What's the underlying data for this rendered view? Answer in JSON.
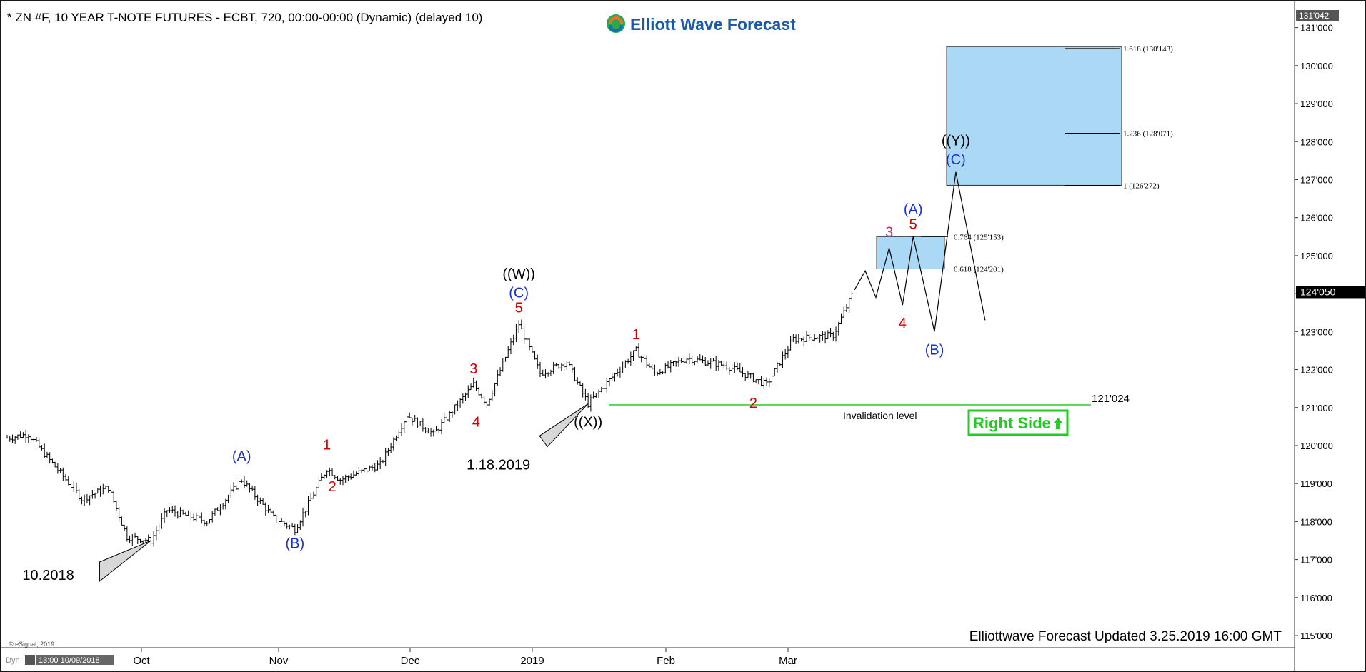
{
  "header": {
    "title": "* ZN #F, 10 YEAR T-NOTE FUTURES - ECBT, 720, 00:00-00:00 (Dynamic) (delayed 10)",
    "brand": "Elliott Wave Forecast",
    "footer": "Elliottwave Forecast Updated 3.25.2019 16:00 GMT",
    "copyright": "© eSignal, 2019",
    "corner_tag": "Dyn",
    "time_readout": "13:00 10/09/2018"
  },
  "colors": {
    "background": "#ffffff",
    "frame": "#1a1a1a",
    "wave_red": "#d40000",
    "wave_blue": "#1a2fd4",
    "target_box": "#aad8f5",
    "invalidation_line": "#2ecc2e",
    "right_side": "#22cc22"
  },
  "chart_data": {
    "type": "ohlc",
    "ylim": [
      114.7,
      131.5
    ],
    "y_ticks": [
      "115'000",
      "116'000",
      "117'000",
      "118'000",
      "119'000",
      "120'000",
      "121'000",
      "122'000",
      "123'000",
      "124'000",
      "125'000",
      "126'000",
      "127'000",
      "128'000",
      "129'000",
      "130'000",
      "131'000"
    ],
    "price_top_label": "131'042",
    "last_price_label": "124'050",
    "last_price": 124.05,
    "x_labels": [
      "Oct",
      "Nov",
      "Dec",
      "2019",
      "Feb",
      "Mar"
    ],
    "price_path": [
      {
        "bar": 0,
        "price": 120.2
      },
      {
        "bar": 8,
        "price": 120.3
      },
      {
        "bar": 15,
        "price": 119.7
      },
      {
        "bar": 28,
        "price": 118.6
      },
      {
        "bar": 38,
        "price": 118.9
      },
      {
        "bar": 45,
        "price": 117.6
      },
      {
        "bar": 54,
        "price": 117.5
      },
      {
        "bar": 60,
        "price": 118.3
      },
      {
        "bar": 75,
        "price": 118.0
      },
      {
        "bar": 88,
        "price": 119.1
      },
      {
        "bar": 100,
        "price": 118.1
      },
      {
        "bar": 108,
        "price": 117.8
      },
      {
        "bar": 120,
        "price": 119.4
      },
      {
        "bar": 125,
        "price": 119.1
      },
      {
        "bar": 140,
        "price": 119.5
      },
      {
        "bar": 150,
        "price": 120.8
      },
      {
        "bar": 160,
        "price": 120.3
      },
      {
        "bar": 175,
        "price": 121.6
      },
      {
        "bar": 180,
        "price": 121.1
      },
      {
        "bar": 192,
        "price": 123.2
      },
      {
        "bar": 200,
        "price": 121.9
      },
      {
        "bar": 210,
        "price": 122.2
      },
      {
        "bar": 218,
        "price": 121.1
      },
      {
        "bar": 236,
        "price": 122.5
      },
      {
        "bar": 243,
        "price": 121.9
      },
      {
        "bar": 255,
        "price": 122.3
      },
      {
        "bar": 270,
        "price": 122.1
      },
      {
        "bar": 285,
        "price": 121.6
      },
      {
        "bar": 295,
        "price": 122.8
      },
      {
        "bar": 310,
        "price": 122.9
      },
      {
        "bar": 318,
        "price": 124.1
      }
    ],
    "projection": [
      {
        "bar": 318,
        "price": 124.1
      },
      {
        "bar": 322,
        "price": 124.6
      },
      {
        "bar": 326,
        "price": 123.9
      },
      {
        "bar": 331,
        "price": 125.2
      },
      {
        "bar": 336,
        "price": 123.7
      },
      {
        "bar": 340,
        "price": 125.5
      },
      {
        "bar": 348,
        "price": 123.0
      },
      {
        "bar": 356,
        "price": 127.2
      },
      {
        "bar": 367,
        "price": 123.3
      }
    ],
    "target_zones": [
      {
        "top": 125.5,
        "bottom": 124.65
      },
      {
        "top": 130.5,
        "bottom": 126.85
      }
    ],
    "fib_levels": [
      {
        "label": "1.618 (130'143)",
        "price": 130.45
      },
      {
        "label": "1.236 (128'071)",
        "price": 128.22
      },
      {
        "label": "1 (126'272)",
        "price": 126.85
      },
      {
        "label": "0.764 (125'153)",
        "price": 125.5
      },
      {
        "label": "0.618 (124'201)",
        "price": 124.65
      }
    ],
    "invalidation": {
      "price": 121.07,
      "label": "121'024",
      "caption": "Invalidation level"
    },
    "wave_labels": [
      {
        "text": "(A)",
        "color": "blue",
        "bar": 88,
        "price": 119.6
      },
      {
        "text": "(B)",
        "color": "blue",
        "bar": 108,
        "price": 117.3
      },
      {
        "text": "1",
        "color": "red",
        "bar": 120,
        "price": 119.9
      },
      {
        "text": "2",
        "color": "red",
        "bar": 122,
        "price": 118.8
      },
      {
        "text": "3",
        "color": "red",
        "bar": 175,
        "price": 121.9
      },
      {
        "text": "4",
        "color": "red",
        "bar": 176,
        "price": 120.5
      },
      {
        "text": "5",
        "color": "red",
        "bar": 192,
        "price": 123.5
      },
      {
        "text": "(C)",
        "color": "blue",
        "bar": 192,
        "price": 123.9
      },
      {
        "text": "((W))",
        "color": "black",
        "bar": 192,
        "price": 124.4
      },
      {
        "text": "((X))",
        "color": "black",
        "bar": 218,
        "price": 120.5
      },
      {
        "text": "1",
        "color": "red",
        "bar": 236,
        "price": 122.8
      },
      {
        "text": "2",
        "color": "red",
        "bar": 280,
        "price": 121.0
      },
      {
        "text": "3",
        "color": "purple",
        "bar": 331,
        "price": 125.5
      },
      {
        "text": "4",
        "color": "red",
        "bar": 336,
        "price": 123.1
      },
      {
        "text": "5",
        "color": "red",
        "bar": 340,
        "price": 125.7
      },
      {
        "text": "(A)",
        "color": "blue",
        "bar": 340,
        "price": 126.1
      },
      {
        "text": "(B)",
        "color": "blue",
        "bar": 348,
        "price": 122.4
      },
      {
        "text": "(C)",
        "color": "blue",
        "bar": 356,
        "price": 127.4
      },
      {
        "text": "((Y))",
        "color": "black",
        "bar": 356,
        "price": 127.9
      }
    ],
    "date_annotations": [
      {
        "text": "10.2018",
        "bar": 54,
        "price": 117.5
      },
      {
        "text": "1.18.2019",
        "bar": 218,
        "price": 121.1
      }
    ]
  },
  "right_side_badge": "Right Side"
}
